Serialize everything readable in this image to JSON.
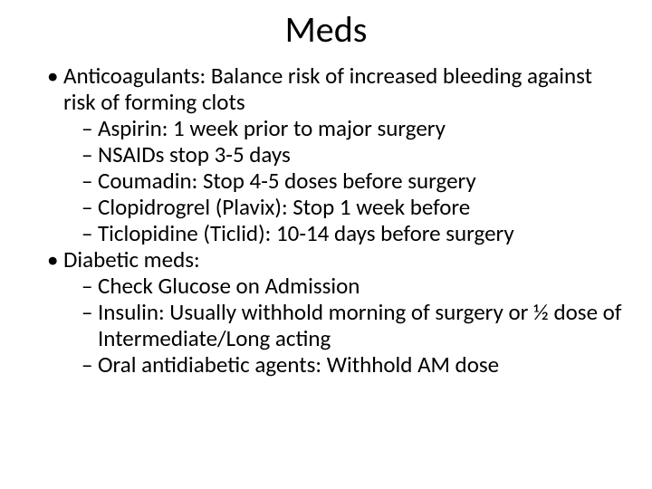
{
  "slide": {
    "title": "Meds",
    "background_color": "#ffffff",
    "text_color": "#000000",
    "title_fontsize": 40,
    "body_fontsize": 25,
    "font_family": "Calibri",
    "items": [
      {
        "level": 1,
        "text": "Anticoagulants: Balance risk of increased bleeding against risk of forming clots"
      },
      {
        "level": 2,
        "text": "Aspirin: 1 week prior to major surgery"
      },
      {
        "level": 2,
        "text": "NSAIDs stop 3-5 days"
      },
      {
        "level": 2,
        "text": "Coumadin: Stop 4-5 doses before surgery"
      },
      {
        "level": 2,
        "text": "Clopidrogrel (Plavix): Stop 1 week before"
      },
      {
        "level": 2,
        "text": "Ticlopidine (Ticlid): 10-14 days before surgery"
      },
      {
        "level": 1,
        "text": "Diabetic meds:"
      },
      {
        "level": 2,
        "text": "Check Glucose on Admission"
      },
      {
        "level": 2,
        "text": "Insulin: Usually withhold morning of surgery or ½ dose of Intermediate/Long acting"
      },
      {
        "level": 2,
        "text": "Oral antidiabetic agents: Withhold AM dose"
      }
    ],
    "bullet_l1": "•",
    "bullet_l2": "–"
  }
}
